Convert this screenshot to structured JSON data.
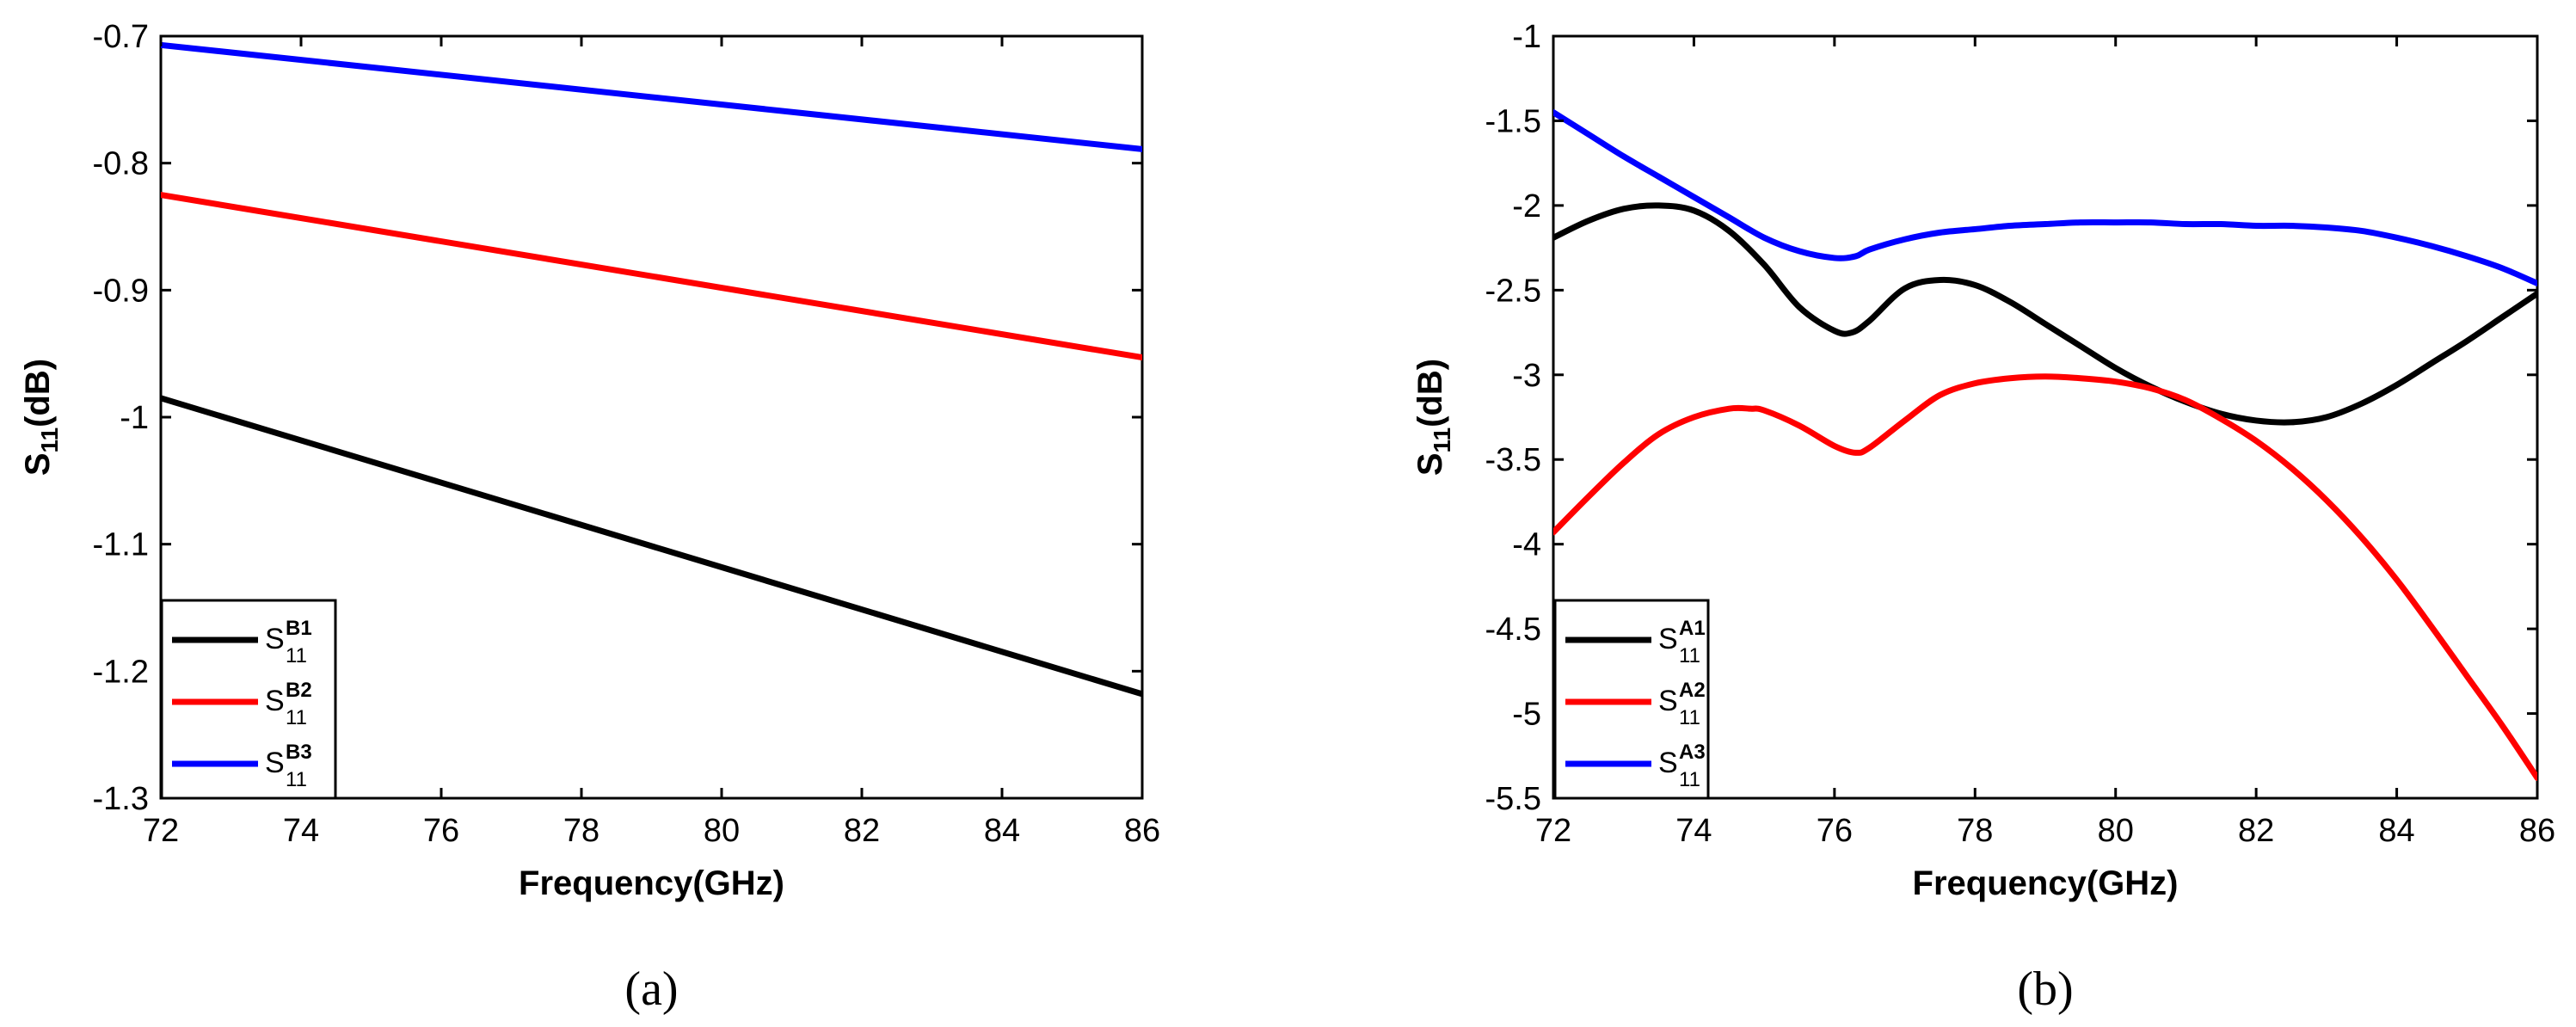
{
  "chart_data": [
    {
      "type": "line",
      "caption": "(a)",
      "xlabel": "Frequency(GHz)",
      "ylabel_main": "S",
      "ylabel_sub": "11",
      "ylabel_tail": "(dB)",
      "xlim": [
        72,
        86
      ],
      "ylim": [
        -1.3,
        -0.7
      ],
      "xticks": [
        72,
        74,
        76,
        78,
        80,
        82,
        84,
        86
      ],
      "xtick_labels": [
        "72",
        "74",
        "76",
        "78",
        "80",
        "82",
        "84",
        "86"
      ],
      "yticks": [
        -0.7,
        -0.8,
        -0.9,
        -1,
        -1.1,
        -1.2,
        -1.3
      ],
      "ytick_labels": [
        "-0.7",
        "-0.8",
        "-0.9",
        "-1",
        "-1.1",
        "-1.2",
        "-1.3"
      ],
      "grid": false,
      "legend_position": "bottom-left",
      "series": [
        {
          "name": "S11 B1",
          "label_base": "S",
          "label_sup": "B1",
          "label_sub": "11",
          "color": "#000000",
          "x": [
            72,
            86
          ],
          "y": [
            -0.985,
            -1.218
          ]
        },
        {
          "name": "S11 B2",
          "label_base": "S",
          "label_sup": "B2",
          "label_sub": "11",
          "color": "#ff0000",
          "x": [
            72,
            86
          ],
          "y": [
            -0.825,
            -0.953
          ]
        },
        {
          "name": "S11 B3",
          "label_base": "S",
          "label_sup": "B3",
          "label_sub": "11",
          "color": "#0000ff",
          "x": [
            72,
            86
          ],
          "y": [
            -0.707,
            -0.789
          ]
        }
      ]
    },
    {
      "type": "line",
      "caption": "(b)",
      "xlabel": "Frequency(GHz)",
      "ylabel_main": "S",
      "ylabel_sub": "11",
      "ylabel_tail": "(dB)",
      "xlim": [
        72,
        86
      ],
      "ylim": [
        -5.5,
        -1
      ],
      "xticks": [
        72,
        74,
        76,
        78,
        80,
        82,
        84,
        86
      ],
      "xtick_labels": [
        "72",
        "74",
        "76",
        "78",
        "80",
        "82",
        "84",
        "86"
      ],
      "yticks": [
        -1,
        -1.5,
        -2,
        -2.5,
        -3,
        -3.5,
        -4,
        -4.5,
        -5,
        -5.5
      ],
      "ytick_labels": [
        "-1",
        "-1.5",
        "-2",
        "-2.5",
        "-3",
        "-3.5",
        "-4",
        "-4.5",
        "-5",
        "-5.5"
      ],
      "grid": false,
      "legend_position": "bottom-left",
      "series": [
        {
          "name": "S11 A1",
          "label_base": "S",
          "label_sup": "A1",
          "label_sub": "11",
          "color": "#000000",
          "x": [
            72,
            72.5,
            73,
            73.5,
            74,
            74.5,
            75,
            75.5,
            76,
            76.25,
            76.5,
            77,
            77.5,
            78,
            78.5,
            79,
            79.5,
            80,
            80.5,
            81,
            81.5,
            82,
            82.5,
            83,
            83.5,
            84,
            84.5,
            85,
            85.5,
            86
          ],
          "y": [
            -2.19,
            -2.09,
            -2.02,
            -2.0,
            -2.03,
            -2.15,
            -2.35,
            -2.6,
            -2.74,
            -2.75,
            -2.68,
            -2.49,
            -2.44,
            -2.47,
            -2.57,
            -2.7,
            -2.83,
            -2.96,
            -3.07,
            -3.16,
            -3.23,
            -3.27,
            -3.28,
            -3.25,
            -3.17,
            -3.06,
            -2.93,
            -2.8,
            -2.66,
            -2.52
          ]
        },
        {
          "name": "S11 A2",
          "label_base": "S",
          "label_sup": "A2",
          "label_sub": "11",
          "color": "#ff0000",
          "x": [
            72,
            72.5,
            73,
            73.5,
            74,
            74.5,
            74.8,
            75,
            75.5,
            76,
            76.3,
            76.5,
            77,
            77.5,
            78,
            78.5,
            79,
            79.5,
            80,
            80.5,
            81,
            81.5,
            82,
            82.5,
            83,
            83.5,
            84,
            84.5,
            85,
            85.5,
            86
          ],
          "y": [
            -3.93,
            -3.72,
            -3.52,
            -3.35,
            -3.25,
            -3.2,
            -3.2,
            -3.21,
            -3.3,
            -3.42,
            -3.46,
            -3.43,
            -3.27,
            -3.12,
            -3.05,
            -3.02,
            -3.01,
            -3.02,
            -3.04,
            -3.08,
            -3.15,
            -3.26,
            -3.39,
            -3.55,
            -3.74,
            -3.96,
            -4.21,
            -4.49,
            -4.78,
            -5.07,
            -5.38
          ]
        },
        {
          "name": "S11 A3",
          "label_base": "S",
          "label_sup": "A3",
          "label_sub": "11",
          "color": "#0000ff",
          "x": [
            72,
            72.5,
            73,
            73.5,
            74,
            74.5,
            75,
            75.5,
            76,
            76.3,
            76.5,
            77,
            77.5,
            78,
            78.5,
            79,
            79.5,
            80,
            80.5,
            81,
            81.5,
            82,
            82.5,
            83,
            83.5,
            84,
            84.5,
            85,
            85.5,
            86
          ],
          "y": [
            -1.45,
            -1.58,
            -1.71,
            -1.83,
            -1.95,
            -2.07,
            -2.19,
            -2.27,
            -2.31,
            -2.3,
            -2.26,
            -2.2,
            -2.16,
            -2.14,
            -2.12,
            -2.11,
            -2.1,
            -2.1,
            -2.1,
            -2.11,
            -2.11,
            -2.12,
            -2.12,
            -2.13,
            -2.15,
            -2.19,
            -2.24,
            -2.3,
            -2.37,
            -2.46
          ]
        }
      ]
    }
  ]
}
